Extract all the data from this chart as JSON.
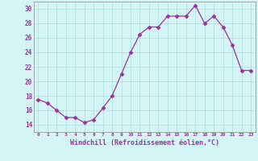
{
  "x": [
    0,
    1,
    2,
    3,
    4,
    5,
    6,
    7,
    8,
    9,
    10,
    11,
    12,
    13,
    14,
    15,
    16,
    17,
    18,
    19,
    20,
    21,
    22,
    23
  ],
  "y": [
    17.5,
    17.0,
    16.0,
    15.0,
    15.0,
    14.3,
    14.7,
    16.3,
    18.0,
    21.0,
    24.0,
    26.5,
    27.5,
    27.5,
    29.0,
    29.0,
    29.0,
    30.5,
    28.0,
    29.0,
    27.5,
    25.0,
    21.5,
    21.5
  ],
  "line_color": "#993399",
  "marker": "D",
  "marker_size": 2.5,
  "bg_color": "#d4f5f5",
  "grid_color": "#aadddd",
  "xlabel": "Windchill (Refroidissement éolien,°C)",
  "ylim": [
    13,
    31
  ],
  "yticks": [
    14,
    16,
    18,
    20,
    22,
    24,
    26,
    28,
    30
  ],
  "xticks": [
    0,
    1,
    2,
    3,
    4,
    5,
    6,
    7,
    8,
    9,
    10,
    11,
    12,
    13,
    14,
    15,
    16,
    17,
    18,
    19,
    20,
    21,
    22,
    23
  ],
  "xlim": [
    -0.5,
    23.5
  ],
  "spine_color": "#888888"
}
